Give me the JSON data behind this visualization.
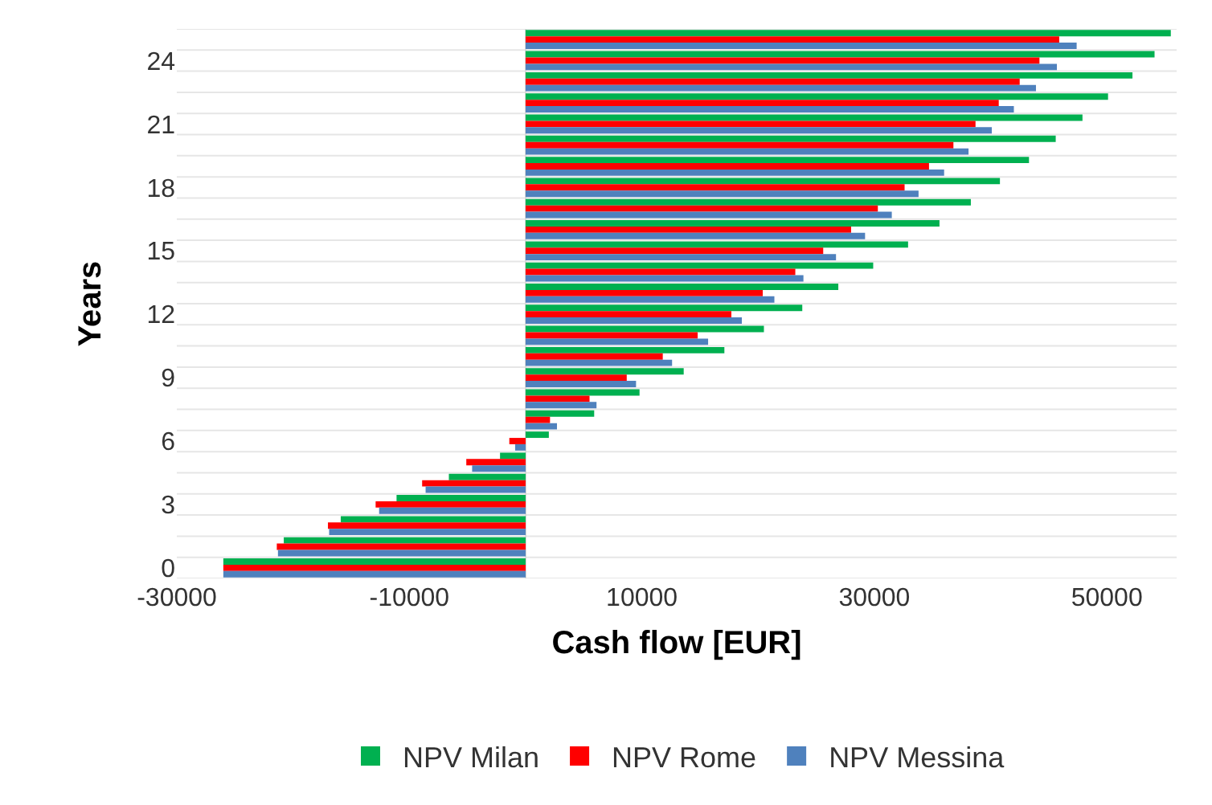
{
  "chart_data": {
    "type": "bar",
    "orientation": "horizontal",
    "xlabel": "Cash flow [EUR]",
    "ylabel": "Years",
    "categories": [
      null,
      "24",
      null,
      null,
      "21",
      null,
      null,
      "18",
      null,
      null,
      "15",
      null,
      null,
      "12",
      null,
      null,
      "9",
      null,
      null,
      "6",
      null,
      null,
      "3",
      null,
      null,
      "0"
    ],
    "series": [
      {
        "name": "NPV Milan",
        "color": "#00b050",
        "values": [
          55500,
          54100,
          52200,
          50100,
          47900,
          45600,
          43300,
          40800,
          38300,
          35600,
          32900,
          29900,
          26900,
          23800,
          20500,
          17100,
          13600,
          9800,
          5900,
          2000,
          -2200,
          -6600,
          -11100,
          -15900,
          -20800,
          -26000
        ]
      },
      {
        "name": "NPV Rome",
        "color": "#ff0000",
        "values": [
          45900,
          44200,
          42500,
          40700,
          38700,
          36800,
          34700,
          32600,
          30300,
          28000,
          25600,
          23200,
          20400,
          17700,
          14800,
          11800,
          8700,
          5500,
          2100,
          -1400,
          -5100,
          -8900,
          -12900,
          -17000,
          -21400,
          -26000
        ]
      },
      {
        "name": "NPV Messina",
        "color": "#4f81bd",
        "values": [
          47400,
          45700,
          43900,
          42000,
          40100,
          38100,
          36000,
          33800,
          31500,
          29200,
          26700,
          23900,
          21400,
          18600,
          15700,
          12600,
          9500,
          6100,
          2700,
          -900,
          -4600,
          -8600,
          -12600,
          -16900,
          -21300,
          -26000
        ]
      }
    ],
    "xlim": [
      -30000,
      56000
    ],
    "xticks": [
      -30000,
      -10000,
      10000,
      30000,
      50000
    ],
    "grid": "y",
    "legend": "bottom"
  }
}
